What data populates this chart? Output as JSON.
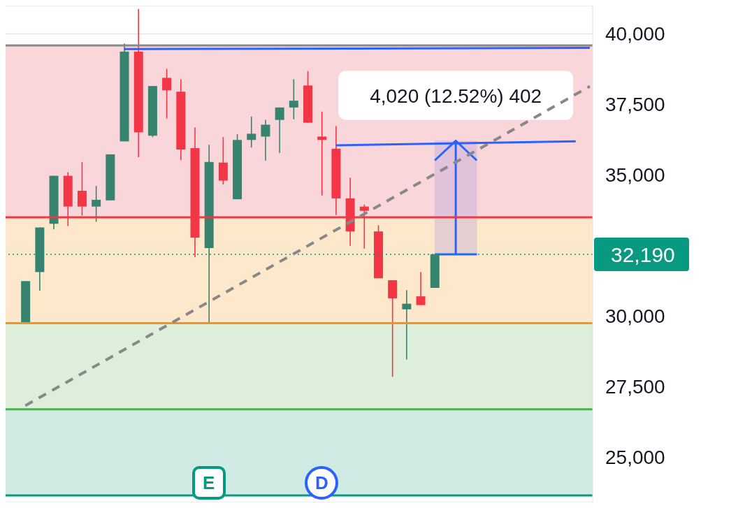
{
  "chart_data": {
    "type": "candlestick",
    "categories": [
      null,
      null,
      null,
      null,
      null,
      null,
      null,
      null,
      null,
      null,
      null,
      null,
      null,
      null,
      null,
      null,
      null,
      null,
      null,
      null,
      null,
      null,
      null,
      null,
      null,
      null,
      null,
      null,
      null,
      null,
      null,
      null,
      null,
      null,
      null,
      null,
      null,
      null,
      null,
      null,
      null
    ],
    "ohlc": [
      [
        29780,
        31240,
        29780,
        31240
      ],
      [
        31560,
        33140,
        30900,
        33140
      ],
      [
        33270,
        34970,
        33070,
        34970
      ],
      [
        34970,
        35100,
        33190,
        33880
      ],
      [
        34440,
        35460,
        33560,
        33880
      ],
      [
        33880,
        34610,
        33340,
        34120
      ],
      [
        34100,
        35730,
        34100,
        35730
      ],
      [
        36190,
        39660,
        36190,
        39370
      ],
      [
        39370,
        40880,
        35630,
        36510
      ],
      [
        36390,
        38150,
        36340,
        38150
      ],
      [
        38440,
        38760,
        37000,
        38000
      ],
      [
        37950,
        38390,
        35530,
        35900
      ],
      [
        35950,
        36680,
        32090,
        32780
      ],
      [
        32410,
        36070,
        29780,
        35460
      ],
      [
        35440,
        36340,
        34660,
        34800
      ],
      [
        34140,
        36440,
        34140,
        36240
      ],
      [
        36240,
        37070,
        35970,
        36460
      ],
      [
        36360,
        36950,
        35510,
        36780
      ],
      [
        36950,
        37390,
        35780,
        37390
      ],
      [
        37390,
        38390,
        36970,
        37630
      ],
      [
        38170,
        38680,
        36850,
        36850
      ],
      [
        36360,
        37240,
        34270,
        36240
      ],
      [
        35930,
        36730,
        33580,
        34170
      ],
      [
        34170,
        34900,
        32490,
        33000
      ],
      [
        33880,
        33950,
        32390,
        33730
      ],
      [
        33000,
        33220,
        31340,
        31340
      ],
      [
        31270,
        31270,
        27850,
        30630
      ],
      [
        30240,
        30920,
        28460,
        30440
      ],
      [
        30700,
        31560,
        30390,
        30390
      ],
      [
        31000,
        32190,
        31000,
        32190
      ],
      null,
      null,
      null,
      null,
      null,
      null,
      null,
      null,
      null,
      null,
      null
    ],
    "colors": [
      "#36836f",
      "#36836f",
      "#36836f",
      "#f23645",
      "#f23645",
      "#36836f",
      "#36836f",
      "#36836f",
      "#f23645",
      "#36836f",
      "#f23645",
      "#f23645",
      "#f23645",
      "#36836f",
      "#f23645",
      "#36836f",
      "#36836f",
      "#36836f",
      "#36836f",
      "#36836f",
      "#f23645",
      "#f23645",
      "#f23645",
      "#f23645",
      "#f23645",
      "#f23645",
      "#f23645",
      "#36836f",
      "#f23645",
      "#36836f",
      null,
      null,
      null,
      null,
      null,
      null,
      null,
      null,
      null,
      null,
      null
    ],
    "series": [
      {
        "type": "line",
        "color": "#888888",
        "line_style": "dashed",
        "values": [
          26830,
          null,
          null,
          null,
          null,
          null,
          null,
          null,
          null,
          null,
          null,
          null,
          null,
          null,
          null,
          null,
          null,
          null,
          null,
          null,
          null,
          null,
          null,
          null,
          null,
          null,
          null,
          null,
          null,
          null,
          null,
          null,
          null,
          null,
          null,
          null,
          null,
          null,
          null,
          null,
          38140
        ]
      },
      {
        "type": "line",
        "color": "#2962ff",
        "line_style": "solid",
        "values": [
          null,
          null,
          null,
          null,
          null,
          null,
          null,
          39460,
          null,
          null,
          null,
          null,
          null,
          null,
          null,
          null,
          null,
          null,
          null,
          null,
          null,
          null,
          null,
          null,
          null,
          null,
          null,
          null,
          null,
          null,
          null,
          null,
          null,
          null,
          null,
          null,
          null,
          null,
          null,
          null,
          39500
        ]
      },
      {
        "type": "line",
        "color": "#2962ff",
        "line_style": "solid",
        "values": [
          null,
          null,
          null,
          null,
          null,
          null,
          null,
          null,
          null,
          null,
          null,
          null,
          null,
          null,
          null,
          null,
          null,
          null,
          null,
          null,
          null,
          null,
          36050,
          null,
          null,
          null,
          null,
          null,
          null,
          null,
          null,
          null,
          null,
          null,
          null,
          null,
          null,
          null,
          null,
          36190,
          null
        ]
      }
    ],
    "ylim": [
      23400,
      41000
    ],
    "yticks": [
      {
        "value": 25000,
        "label": "25,000"
      },
      {
        "value": 27500,
        "label": "27,500"
      },
      {
        "value": 30000,
        "label": "30,000"
      },
      {
        "value": 35000,
        "label": "35,000"
      },
      {
        "value": 37500,
        "label": "37,500"
      },
      {
        "value": 40000,
        "label": "40,000"
      }
    ],
    "grid": "y",
    "bands": [
      {
        "axis": "y",
        "from": 33500,
        "to": 39590,
        "color": "#f9d6da"
      },
      {
        "axis": "y",
        "from": 29750,
        "to": 33500,
        "color": "#fde8cb"
      },
      {
        "axis": "y",
        "from": 26700,
        "to": 29750,
        "color": "#ddeedb"
      },
      {
        "axis": "y",
        "from": 23650,
        "to": 26700,
        "color": "#d0ebe4"
      }
    ],
    "ref_lines": [
      {
        "axis": "y",
        "value": 39590,
        "color": "#888888"
      },
      {
        "axis": "y",
        "value": 33500,
        "color": "#f23645"
      },
      {
        "axis": "y",
        "value": 29750,
        "color": "#f7931a"
      },
      {
        "axis": "y",
        "value": 26700,
        "color": "#4caf50"
      },
      {
        "axis": "y",
        "value": 23650,
        "color": "#089981"
      },
      {
        "axis": "y",
        "value": 32190,
        "label": "32,190",
        "color": "#089981",
        "line_style": "dotted"
      }
    ],
    "annotations": [
      {
        "text": "4,020 (12.52%) 402",
        "y": 36210
      },
      "E",
      "D"
    ]
  }
}
